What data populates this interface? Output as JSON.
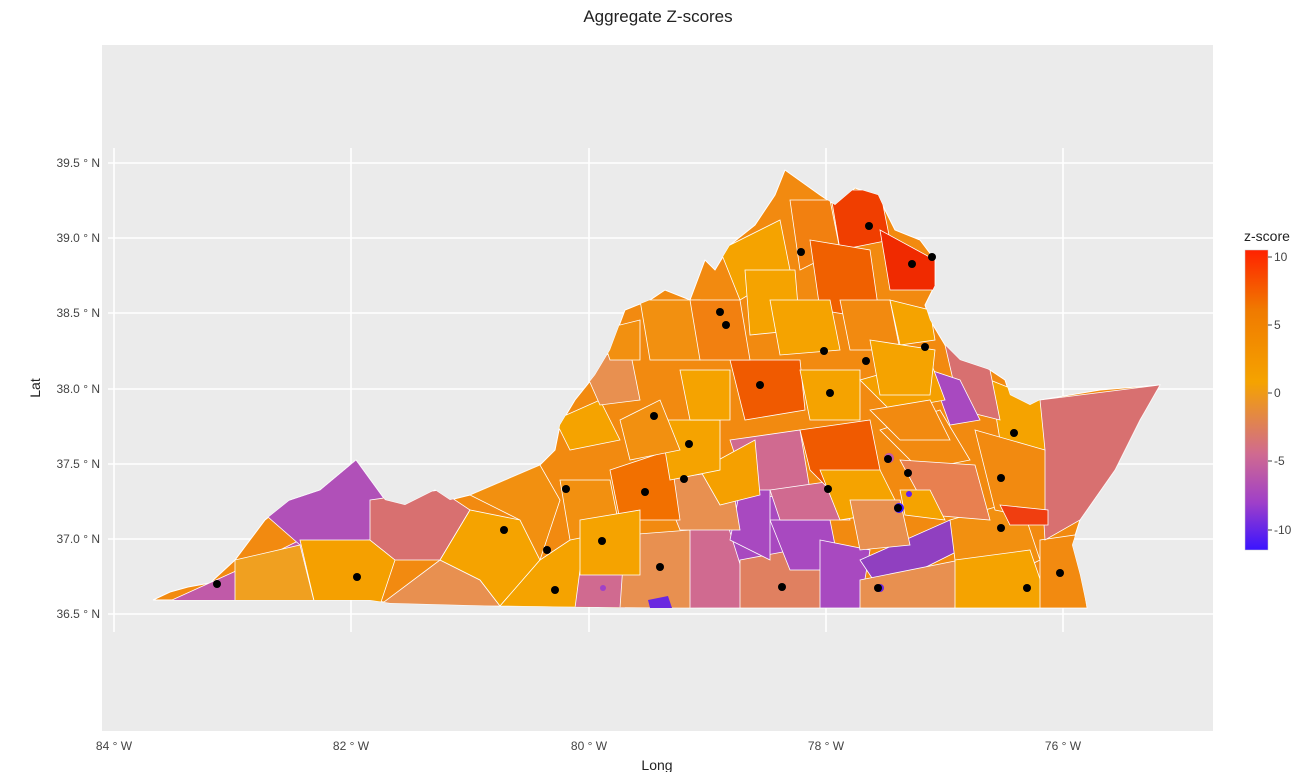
{
  "title": "Aggregate Z-scores",
  "x_axis": {
    "label": "Long",
    "ticks": [
      "84 ° W",
      "82 ° W",
      "80 ° W",
      "78 ° W",
      "76 ° W"
    ]
  },
  "y_axis": {
    "label": "Lat",
    "ticks": [
      "39.5 ° N",
      "39.0 ° N",
      "38.5 ° N",
      "38.0 ° N",
      "37.5 ° N",
      "37.0 ° N",
      "36.5 ° N"
    ]
  },
  "colorbar": {
    "title": "z-score",
    "ticks": [
      "10",
      "5",
      "0",
      "-5",
      "-10"
    ],
    "stops": [
      "#ff2200",
      "#f07a00",
      "#f5a300",
      "#d06a90",
      "#a040c8",
      "#3a14ff"
    ]
  },
  "colors": {
    "panel_background": "#ebebeb",
    "gridline": "#ffffff",
    "point": "#000000"
  }
}
